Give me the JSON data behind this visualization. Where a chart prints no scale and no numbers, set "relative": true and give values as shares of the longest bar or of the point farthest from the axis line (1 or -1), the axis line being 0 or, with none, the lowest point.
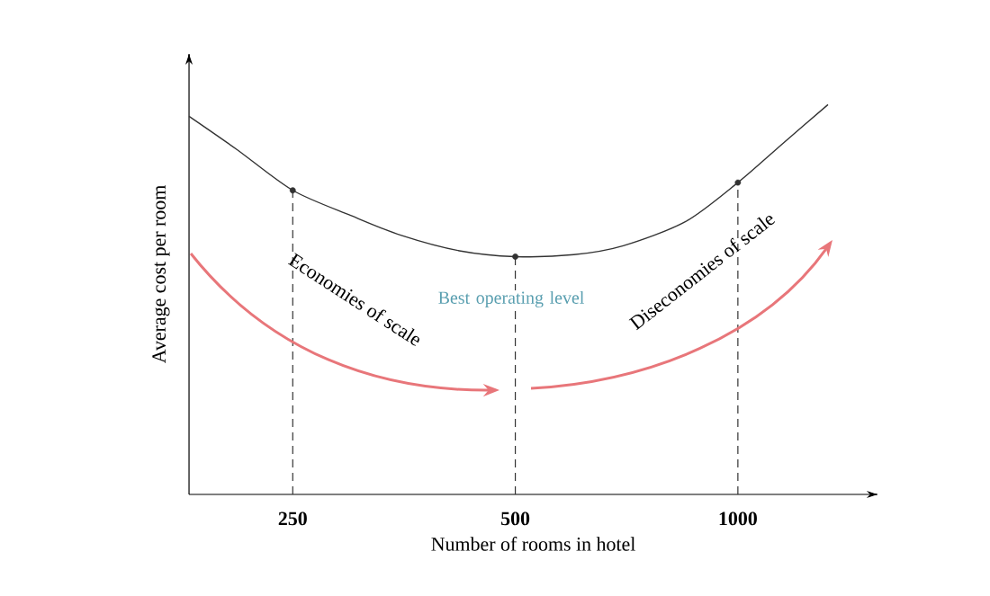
{
  "chart_data": {
    "type": "line",
    "relative": true,
    "log": "x",
    "xlabel": "Number of rooms in hotel",
    "ylabel": "Average cost per room",
    "xlim": [
      181,
      1545
    ],
    "xticks": [
      250,
      500,
      1000
    ],
    "series": [
      {
        "color": "#333333",
        "marker": "none",
        "x": [
          181,
          210,
          250,
          300,
          350,
          420,
          500,
          600,
          700,
          850,
          1000,
          1150,
          1324
        ],
        "values": [
          0.97,
          0.885,
          0.78,
          0.715,
          0.665,
          0.625,
          0.61,
          0.615,
          0.638,
          0.7,
          0.8,
          0.9,
          1.0
        ]
      },
      {
        "type": "scatter",
        "color": "#333333",
        "marker": "circle",
        "x": [
          250,
          500,
          1000
        ],
        "values": [
          0.78,
          0.61,
          0.8
        ]
      }
    ],
    "ref_lines": [
      {
        "axis": "x",
        "value": 250,
        "line_style": "dashed",
        "color": "#333333"
      },
      {
        "axis": "x",
        "value": 500,
        "line_style": "dashed",
        "color": "#333333"
      },
      {
        "axis": "x",
        "value": 1000,
        "line_style": "dashed",
        "color": "#333333"
      }
    ],
    "annotations": [
      "Economies of scale",
      "Best operating level",
      "Diseconomies of scale"
    ]
  }
}
